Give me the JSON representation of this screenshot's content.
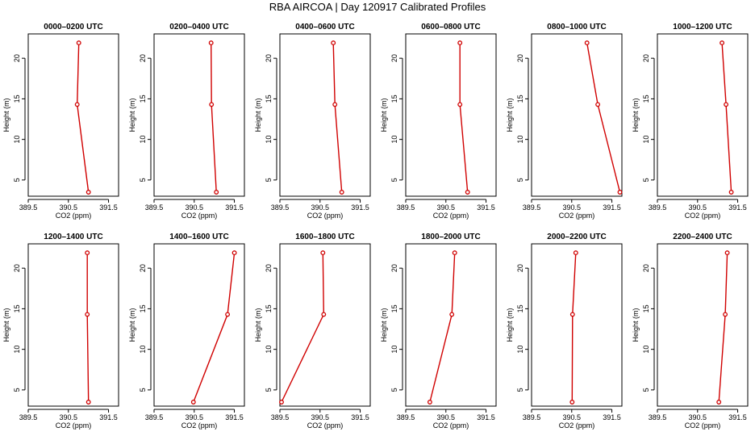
{
  "figure": {
    "title": "RBA AIRCOA  |  Day 120917  Calibrated Profiles"
  },
  "chart_data": [
    {
      "type": "line",
      "title": "0000–0200 UTC",
      "xlabel": "CO2 (ppm)",
      "ylabel": "Height (m)",
      "xlim": [
        389.5,
        391.75
      ],
      "ylim": [
        3,
        23
      ],
      "xticks": [
        "389.5",
        "390.5",
        "391.5"
      ],
      "yticks": [
        "5",
        "10",
        "15",
        "20"
      ],
      "grid": false,
      "series": [
        {
          "x": [
            391.0,
            390.72,
            390.76
          ],
          "y": [
            3.5,
            14.3,
            21.9
          ]
        }
      ]
    },
    {
      "type": "line",
      "title": "0200–0400 UTC",
      "xlabel": "CO2 (ppm)",
      "ylabel": "Height (m)",
      "xlim": [
        389.5,
        391.75
      ],
      "ylim": [
        3,
        23
      ],
      "xticks": [
        "389.5",
        "390.5",
        "391.5"
      ],
      "yticks": [
        "5",
        "10",
        "15",
        "20"
      ],
      "grid": false,
      "series": [
        {
          "x": [
            391.05,
            390.93,
            390.92
          ],
          "y": [
            3.5,
            14.3,
            21.9
          ]
        }
      ]
    },
    {
      "type": "line",
      "title": "0400–0600 UTC",
      "xlabel": "CO2 (ppm)",
      "ylabel": "Height (m)",
      "xlim": [
        389.5,
        391.75
      ],
      "ylim": [
        3,
        23
      ],
      "xticks": [
        "389.5",
        "390.5",
        "391.5"
      ],
      "yticks": [
        "5",
        "10",
        "15",
        "20"
      ],
      "grid": false,
      "series": [
        {
          "x": [
            391.04,
            390.87,
            390.83
          ],
          "y": [
            3.5,
            14.3,
            21.9
          ]
        }
      ]
    },
    {
      "type": "line",
      "title": "0600–0800 UTC",
      "xlabel": "CO2 (ppm)",
      "ylabel": "Height (m)",
      "xlim": [
        389.5,
        391.75
      ],
      "ylim": [
        3,
        23
      ],
      "xticks": [
        "389.5",
        "390.5",
        "391.5"
      ],
      "yticks": [
        "5",
        "10",
        "15",
        "20"
      ],
      "grid": false,
      "series": [
        {
          "x": [
            391.04,
            390.85,
            390.85
          ],
          "y": [
            3.5,
            14.3,
            21.9
          ]
        }
      ]
    },
    {
      "type": "line",
      "title": "0800–1000 UTC",
      "xlabel": "CO2 (ppm)",
      "ylabel": "Height (m)",
      "xlim": [
        389.5,
        391.75
      ],
      "ylim": [
        3,
        23
      ],
      "xticks": [
        "389.5",
        "390.5",
        "391.5"
      ],
      "yticks": [
        "5",
        "10",
        "15",
        "20"
      ],
      "grid": false,
      "series": [
        {
          "x": [
            391.7,
            391.15,
            390.88
          ],
          "y": [
            3.5,
            14.3,
            21.9
          ]
        }
      ]
    },
    {
      "type": "line",
      "title": "1000–1200 UTC",
      "xlabel": "CO2 (ppm)",
      "ylabel": "Height (m)",
      "xlim": [
        389.5,
        391.75
      ],
      "ylim": [
        3,
        23
      ],
      "xticks": [
        "389.5",
        "390.5",
        "391.5"
      ],
      "yticks": [
        "5",
        "10",
        "15",
        "20"
      ],
      "grid": false,
      "series": [
        {
          "x": [
            391.34,
            391.21,
            391.11
          ],
          "y": [
            3.5,
            14.3,
            21.9
          ]
        }
      ]
    },
    {
      "type": "line",
      "title": "1200–1400 UTC",
      "xlabel": "CO2 (ppm)",
      "ylabel": "Height (m)",
      "xlim": [
        389.5,
        391.75
      ],
      "ylim": [
        3,
        23
      ],
      "xticks": [
        "389.5",
        "390.5",
        "391.5"
      ],
      "yticks": [
        "5",
        "10",
        "15",
        "20"
      ],
      "grid": false,
      "series": [
        {
          "x": [
            391.0,
            390.97,
            390.97
          ],
          "y": [
            3.5,
            14.3,
            21.9
          ]
        }
      ]
    },
    {
      "type": "line",
      "title": "1400–1600 UTC",
      "xlabel": "CO2 (ppm)",
      "ylabel": "Height (m)",
      "xlim": [
        389.5,
        391.75
      ],
      "ylim": [
        3,
        23
      ],
      "xticks": [
        "389.5",
        "390.5",
        "391.5"
      ],
      "yticks": [
        "5",
        "10",
        "15",
        "20"
      ],
      "grid": false,
      "series": [
        {
          "x": [
            390.48,
            391.33,
            391.5
          ],
          "y": [
            3.5,
            14.3,
            21.9
          ]
        }
      ]
    },
    {
      "type": "line",
      "title": "1600–1800 UTC",
      "xlabel": "CO2 (ppm)",
      "ylabel": "Height (m)",
      "xlim": [
        389.5,
        391.75
      ],
      "ylim": [
        3,
        23
      ],
      "xticks": [
        "389.5",
        "390.5",
        "391.5"
      ],
      "yticks": [
        "5",
        "10",
        "15",
        "20"
      ],
      "grid": false,
      "series": [
        {
          "x": [
            389.54,
            390.59,
            390.57
          ],
          "y": [
            3.5,
            14.3,
            21.9
          ]
        }
      ]
    },
    {
      "type": "line",
      "title": "1800–2000 UTC",
      "xlabel": "CO2 (ppm)",
      "ylabel": "Height (m)",
      "xlim": [
        389.5,
        391.75
      ],
      "ylim": [
        3,
        23
      ],
      "xticks": [
        "389.5",
        "390.5",
        "391.5"
      ],
      "yticks": [
        "5",
        "10",
        "15",
        "20"
      ],
      "grid": false,
      "series": [
        {
          "x": [
            390.1,
            390.65,
            390.72
          ],
          "y": [
            3.5,
            14.3,
            21.9
          ]
        }
      ]
    },
    {
      "type": "line",
      "title": "2000–2200 UTC",
      "xlabel": "CO2 (ppm)",
      "ylabel": "Height (m)",
      "xlim": [
        389.5,
        391.75
      ],
      "ylim": [
        3,
        23
      ],
      "xticks": [
        "389.5",
        "390.5",
        "391.5"
      ],
      "yticks": [
        "5",
        "10",
        "15",
        "20"
      ],
      "grid": false,
      "series": [
        {
          "x": [
            390.51,
            390.52,
            390.6
          ],
          "y": [
            3.5,
            14.3,
            21.9
          ]
        }
      ]
    },
    {
      "type": "line",
      "title": "2200–2400 UTC",
      "xlabel": "CO2 (ppm)",
      "ylabel": "Height (m)",
      "xlim": [
        389.5,
        391.75
      ],
      "ylim": [
        3,
        23
      ],
      "xticks": [
        "389.5",
        "390.5",
        "391.5"
      ],
      "yticks": [
        "5",
        "10",
        "15",
        "20"
      ],
      "grid": false,
      "series": [
        {
          "x": [
            391.03,
            391.19,
            391.24
          ],
          "y": [
            3.5,
            14.3,
            21.9
          ]
        }
      ]
    }
  ]
}
